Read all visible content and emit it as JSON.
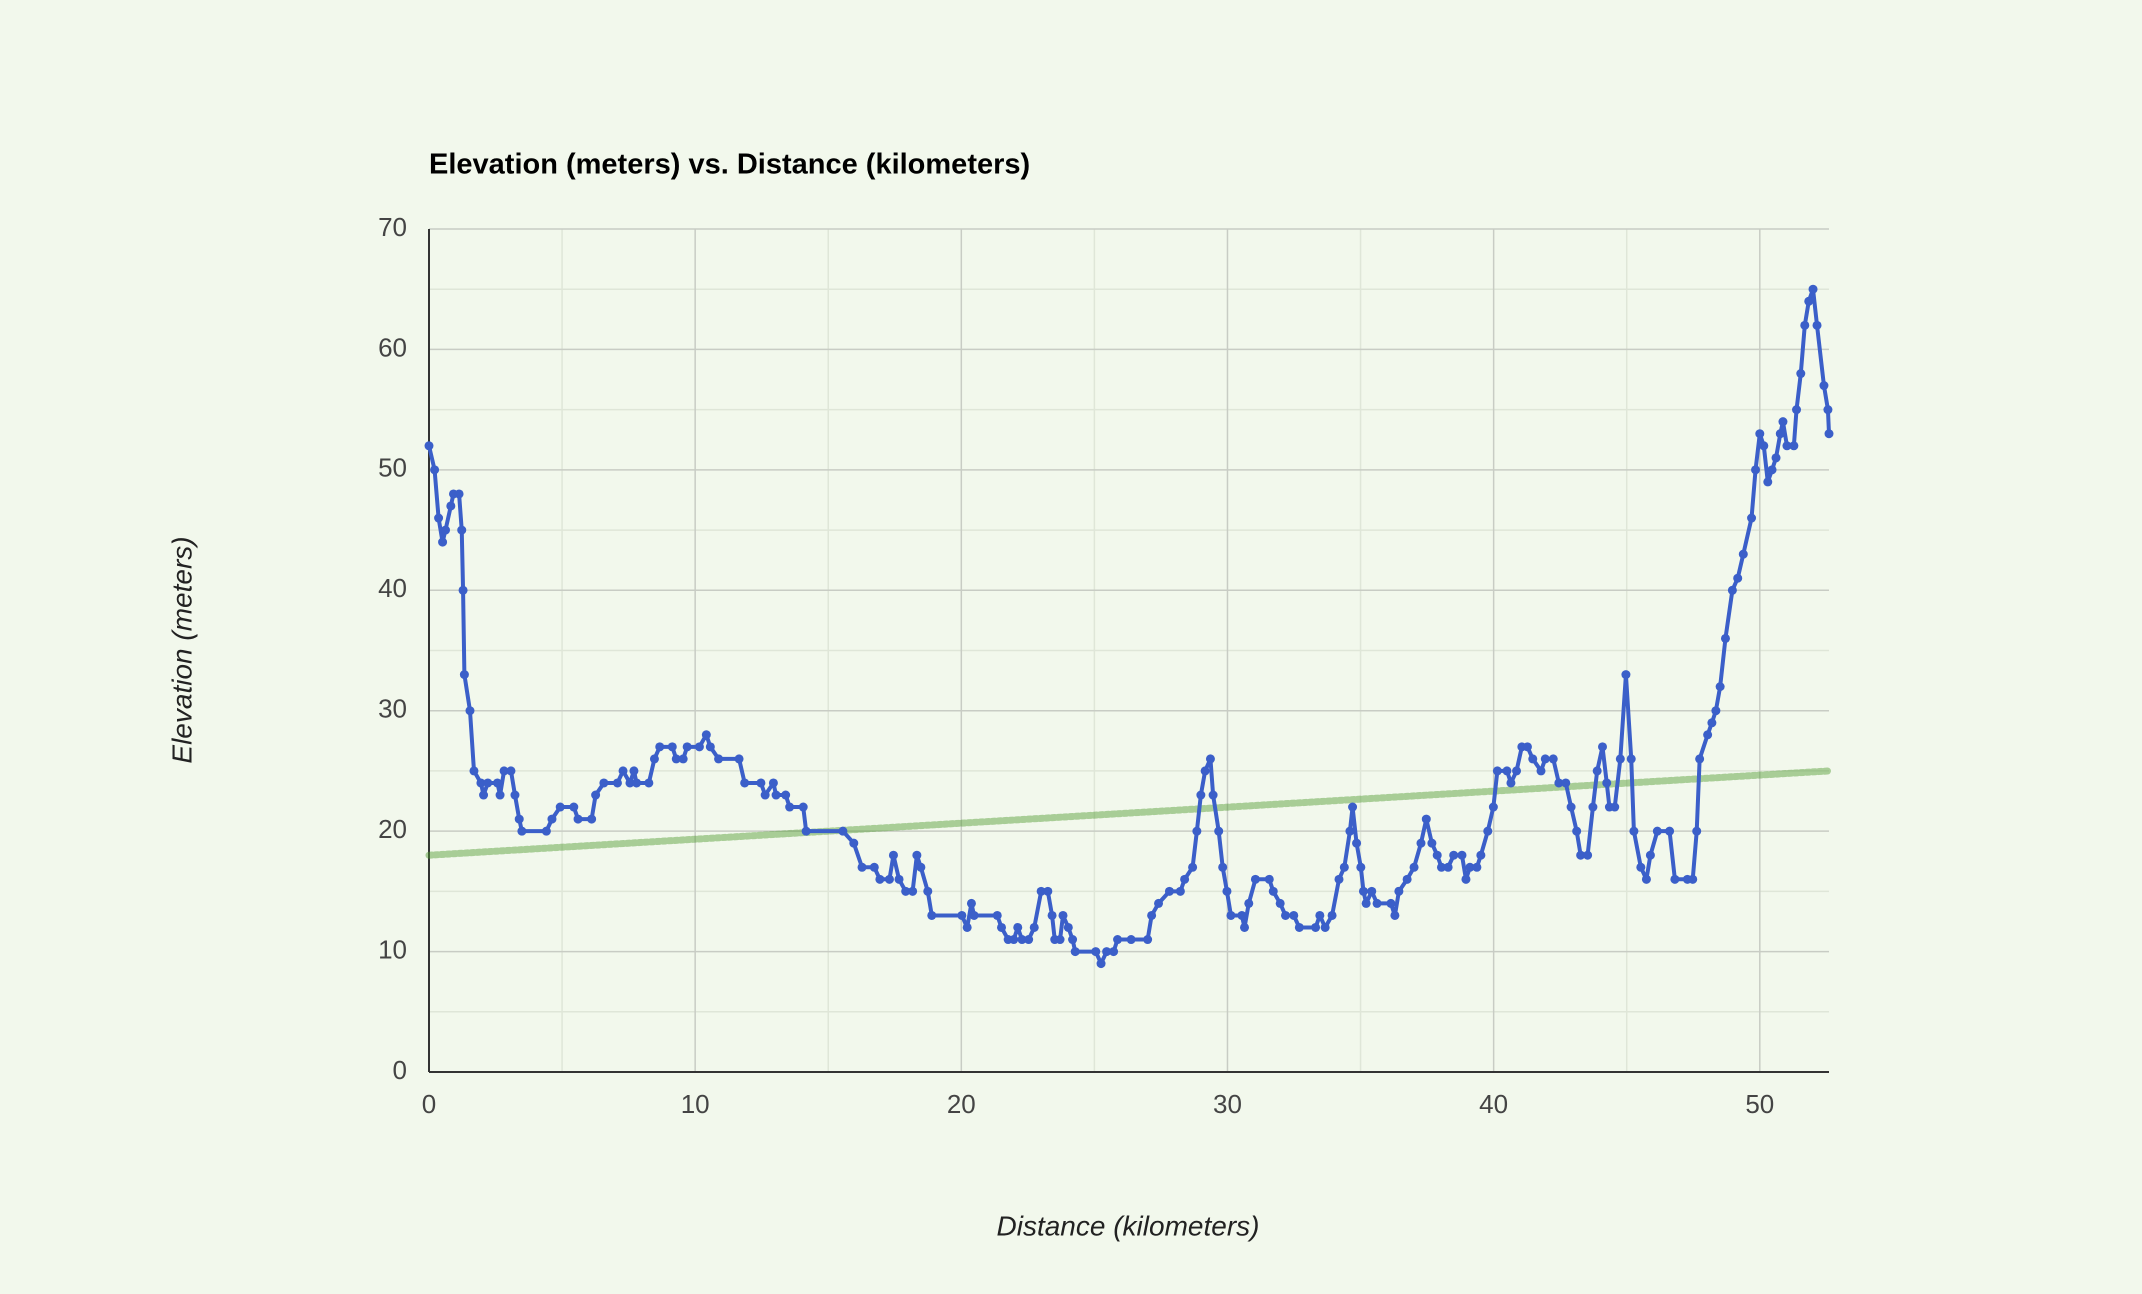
{
  "chart_data": {
    "type": "line",
    "title": "Elevation (meters) vs. Distance (kilometers)",
    "x_label": "Distance (kilometers)",
    "y_label": "Elevation (meters)",
    "xlim": [
      0,
      52.6
    ],
    "ylim": [
      0,
      70
    ],
    "xticks": [
      0,
      10,
      20,
      30,
      40,
      50
    ],
    "yticks": [
      0,
      10,
      20,
      30,
      40,
      50,
      60,
      70
    ],
    "grid": true,
    "minor_grid": true,
    "series": [
      {
        "color": "#3b5fc9",
        "markers": true,
        "x": [
          0,
          0.21,
          0.36,
          0.51,
          0.62,
          0.82,
          0.92,
          1.13,
          1.23,
          1.28,
          1.33,
          1.54,
          1.69,
          1.95,
          2.05,
          2.21,
          2.57,
          2.67,
          2.82,
          3.08,
          3.23,
          3.39,
          3.49,
          4.41,
          4.62,
          4.93,
          5.44,
          5.6,
          6.11,
          6.26,
          6.57,
          7.08,
          7.29,
          7.55,
          7.7,
          7.8,
          8.26,
          8.47,
          8.67,
          9.14,
          9.29,
          9.55,
          9.7,
          10.16,
          10.42,
          10.57,
          10.88,
          11.65,
          11.86,
          12.47,
          12.63,
          12.94,
          13.04,
          13.4,
          13.55,
          14.06,
          14.17,
          15.55,
          15.96,
          16.27,
          16.73,
          16.94,
          17.3,
          17.45,
          17.66,
          17.91,
          18.17,
          18.33,
          18.48,
          18.74,
          18.89,
          20.02,
          20.22,
          20.38,
          20.48,
          21.35,
          21.51,
          21.76,
          21.97,
          22.12,
          22.28,
          22.53,
          22.74,
          23.0,
          23.25,
          23.41,
          23.51,
          23.71,
          23.82,
          24.02,
          24.18,
          24.28,
          25.05,
          25.25,
          25.46,
          25.72,
          25.87,
          26.38,
          27.0,
          27.15,
          27.41,
          27.82,
          28.23,
          28.39,
          28.69,
          28.85,
          29.0,
          29.16,
          29.36,
          29.46,
          29.67,
          29.82,
          29.98,
          30.13,
          30.54,
          30.64,
          30.8,
          31.05,
          31.57,
          31.72,
          31.98,
          32.18,
          32.49,
          32.7,
          33.31,
          33.47,
          33.67,
          33.93,
          34.19,
          34.39,
          34.6,
          34.7,
          34.85,
          35.01,
          35.11,
          35.21,
          35.42,
          35.62,
          36.14,
          36.29,
          36.44,
          36.75,
          37.01,
          37.27,
          37.47,
          37.68,
          37.88,
          38.04,
          38.29,
          38.5,
          38.81,
          38.96,
          39.11,
          39.37,
          39.52,
          39.78,
          39.99,
          40.14,
          40.5,
          40.65,
          40.86,
          41.06,
          41.27,
          41.47,
          41.78,
          41.94,
          42.24,
          42.45,
          42.71,
          42.91,
          43.12,
          43.27,
          43.53,
          43.73,
          43.89,
          44.09,
          44.25,
          44.35,
          44.55,
          44.76,
          44.97,
          45.17,
          45.27,
          45.53,
          45.74,
          45.89,
          46.15,
          46.61,
          46.81,
          47.28,
          47.48,
          47.63,
          47.74,
          48.04,
          48.2,
          48.35,
          48.51,
          48.71,
          48.97,
          49.17,
          49.38,
          49.69,
          49.84,
          50.0,
          50.15,
          50.3,
          50.46,
          50.61,
          50.77,
          50.87,
          51.02,
          51.28,
          51.38,
          51.54,
          51.69,
          51.84,
          52.0,
          52.15,
          52.41,
          52.56,
          52.6
        ],
        "values": [
          52,
          50,
          46,
          44,
          45,
          47,
          48,
          48,
          45,
          40,
          33,
          30,
          25,
          24,
          23,
          24,
          24,
          23,
          25,
          25,
          23,
          21,
          20,
          20,
          21,
          22,
          22,
          21,
          21,
          23,
          24,
          24,
          25,
          24,
          25,
          24,
          24,
          26,
          27,
          27,
          26,
          26,
          27,
          27,
          28,
          27,
          26,
          26,
          24,
          24,
          23,
          24,
          23,
          23,
          22,
          22,
          20,
          20,
          19,
          17,
          17,
          16,
          16,
          18,
          16,
          15,
          15,
          18,
          17,
          15,
          13,
          13,
          12,
          14,
          13,
          13,
          12,
          11,
          11,
          12,
          11,
          11,
          12,
          15,
          15,
          13,
          11,
          11,
          13,
          12,
          11,
          10,
          10,
          9,
          10,
          10,
          11,
          11,
          11,
          13,
          14,
          15,
          15,
          16,
          17,
          20,
          23,
          25,
          26,
          23,
          20,
          17,
          15,
          13,
          13,
          12,
          14,
          16,
          16,
          15,
          14,
          13,
          13,
          12,
          12,
          13,
          12,
          13,
          16,
          17,
          20,
          22,
          19,
          17,
          15,
          14,
          15,
          14,
          14,
          13,
          15,
          16,
          17,
          19,
          21,
          19,
          18,
          17,
          17,
          18,
          18,
          16,
          17,
          17,
          18,
          20,
          22,
          25,
          25,
          24,
          25,
          27,
          27,
          26,
          25,
          26,
          26,
          24,
          24,
          22,
          20,
          18,
          18,
          22,
          25,
          27,
          24,
          22,
          22,
          26,
          33,
          26,
          20,
          17,
          16,
          18,
          20,
          20,
          16,
          16,
          16,
          20,
          26,
          28,
          29,
          30,
          32,
          36,
          40,
          41,
          43,
          46,
          50,
          53,
          52,
          49,
          50,
          51,
          53,
          54,
          52,
          52,
          55,
          58,
          62,
          64,
          65,
          62,
          57,
          55,
          53
        ]
      },
      {
        "color": "#4e9a2e",
        "trendline": true,
        "x": [
          0,
          52.6
        ],
        "values": [
          18,
          25
        ]
      }
    ]
  }
}
